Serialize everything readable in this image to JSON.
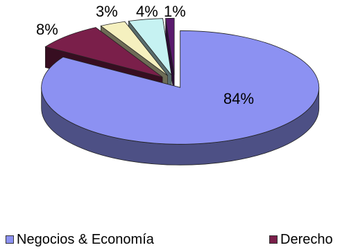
{
  "chart_data": {
    "type": "pie",
    "variant": "3d-exploded",
    "title": "",
    "categories": [
      "Negocios & Economía",
      "Derecho",
      "",
      "",
      ""
    ],
    "values": [
      84,
      8,
      3,
      4,
      1
    ],
    "value_labels": [
      "84%",
      "8%",
      "3%",
      "4%",
      "1%"
    ],
    "colors": [
      "#8c91f2",
      "#7a1f4a",
      "#f5f0bf",
      "#c6f2f2",
      "#5a1a6e"
    ],
    "legend": {
      "position": "bottom",
      "entries": [
        "Negocios & Economía",
        "Derecho"
      ]
    }
  }
}
